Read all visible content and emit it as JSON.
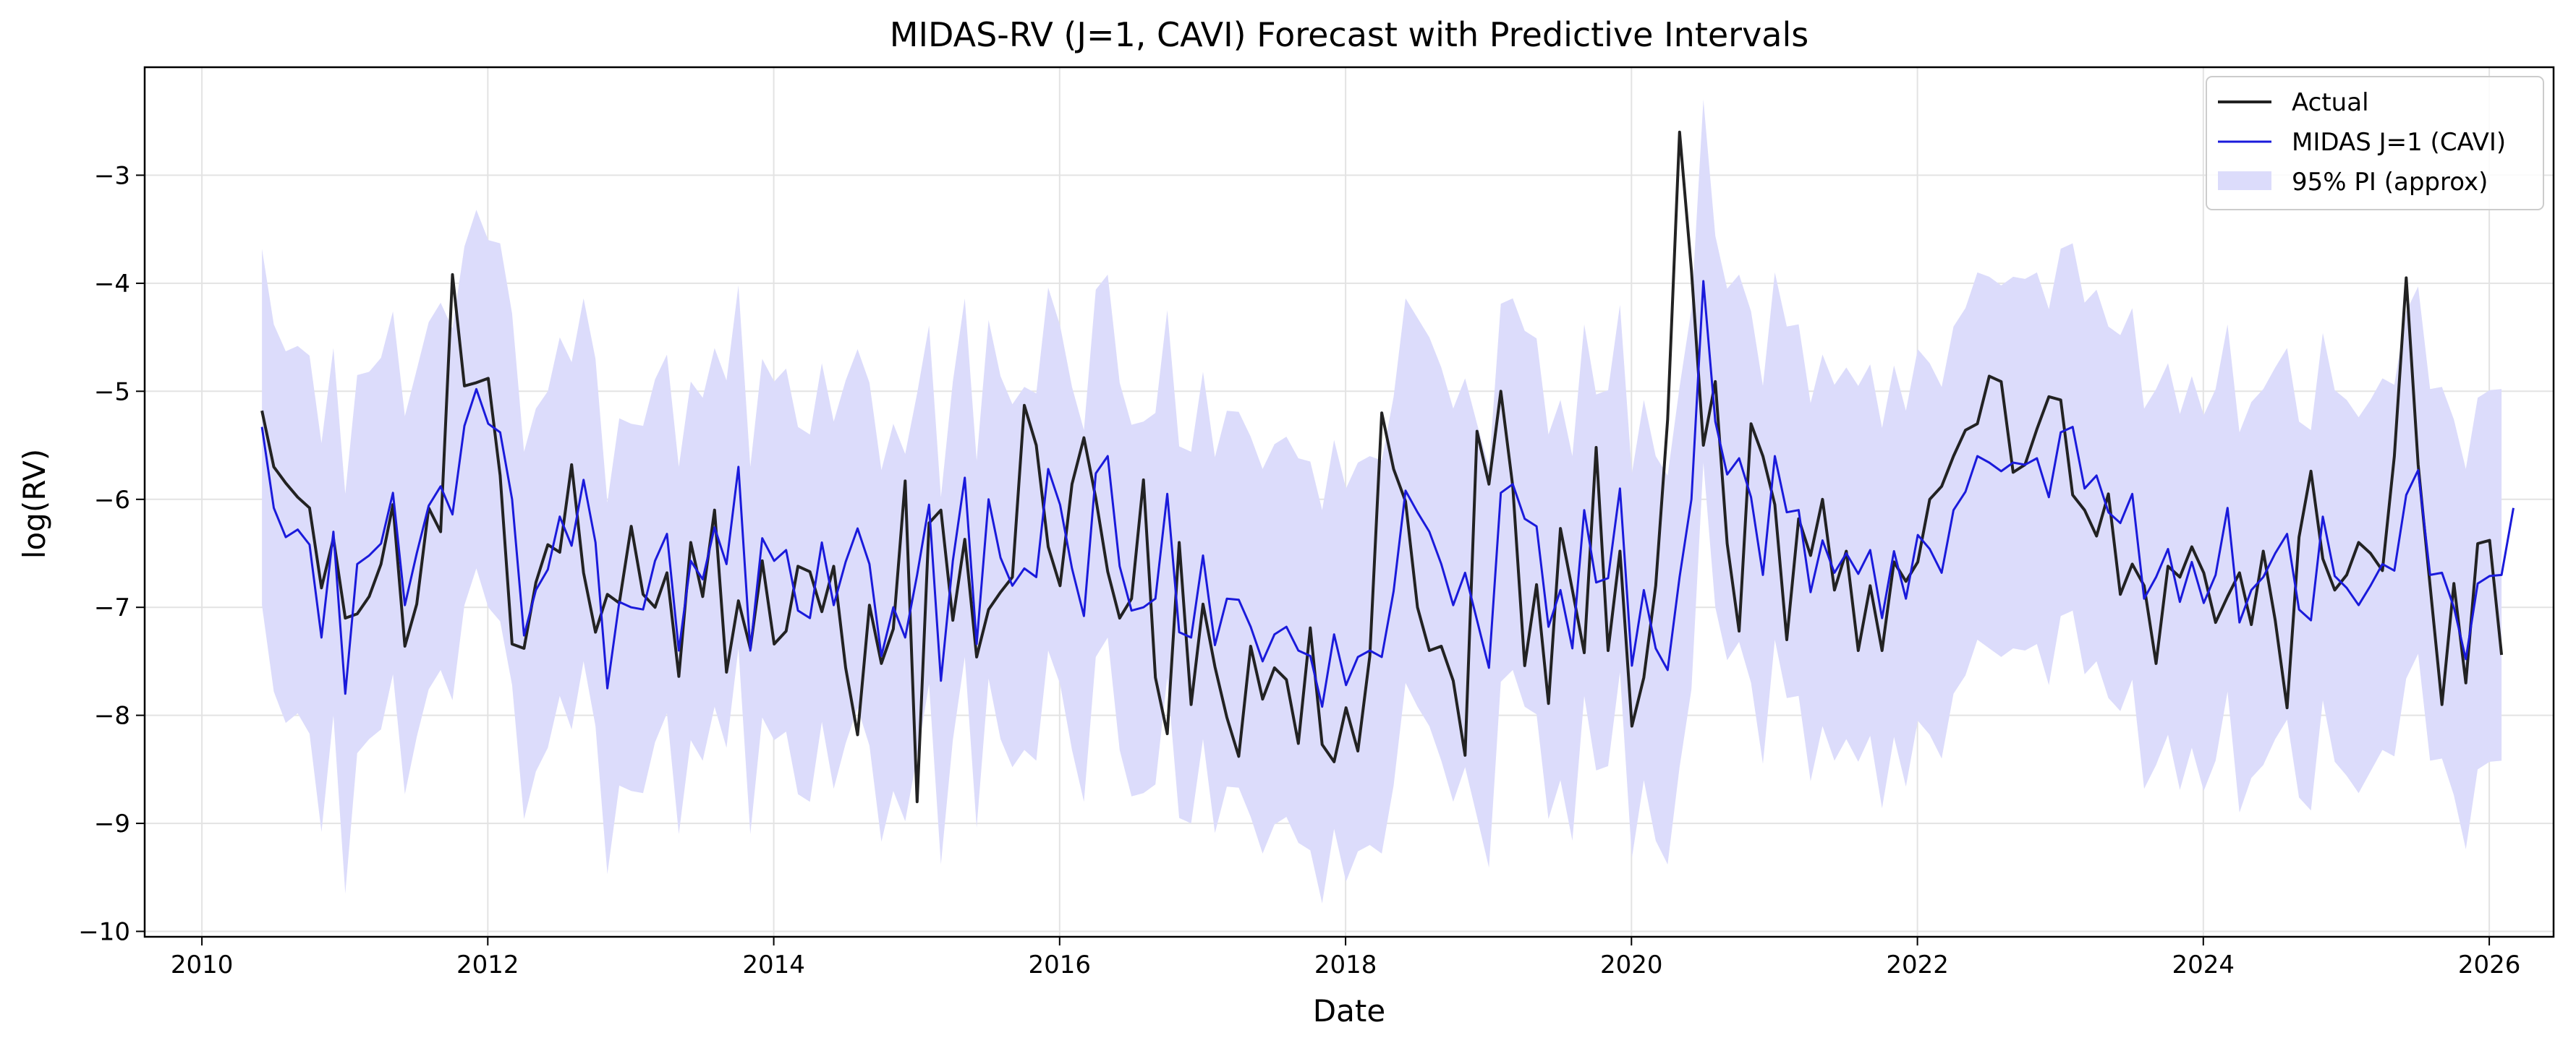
{
  "chart_data": {
    "type": "line",
    "title": "MIDAS-RV (J=1, CAVI) Forecast with Predictive Intervals",
    "xlabel": "Date",
    "ylabel": "log(RV)",
    "xlim": [
      2009.6,
      2026.45
    ],
    "ylim": [
      -10.05,
      -2.0
    ],
    "xticks": [
      2010,
      2012,
      2014,
      2016,
      2018,
      2020,
      2022,
      2024,
      2026
    ],
    "xtick_labels": [
      "2010",
      "2012",
      "2014",
      "2016",
      "2018",
      "2020",
      "2022",
      "2024",
      "2026"
    ],
    "yticks": [
      -10,
      -9,
      -8,
      -7,
      -6,
      -5,
      -4,
      -3
    ],
    "ytick_labels": [
      "−10",
      "−9",
      "−8",
      "−7",
      "−6",
      "−5",
      "−4",
      "−3"
    ],
    "grid": true,
    "legend_position": "top-right",
    "legend": {
      "actual": "Actual",
      "forecast": "MIDAS J=1 (CAVI)",
      "band": "95% PI (approx)"
    },
    "colors": {
      "actual": "#222222",
      "forecast": "#1a1adb",
      "band": "#dcdcfb",
      "grid": "#e3e3e3"
    },
    "x_start": 2010.42,
    "x_step": 0.08333,
    "actual": [
      -5.18,
      -5.7,
      -5.85,
      -5.98,
      -6.08,
      -6.82,
      -6.36,
      -7.1,
      -7.06,
      -6.9,
      -6.6,
      -6.05,
      -7.36,
      -6.97,
      -6.08,
      -6.3,
      -3.92,
      -4.95,
      -4.92,
      -4.88,
      -5.78,
      -7.34,
      -7.38,
      -6.77,
      -6.42,
      -6.49,
      -5.68,
      -6.68,
      -7.23,
      -6.88,
      -6.96,
      -6.25,
      -6.88,
      -7.0,
      -6.68,
      -7.64,
      -6.4,
      -6.9,
      -6.1,
      -7.6,
      -6.94,
      -7.38,
      -6.57,
      -7.34,
      -7.22,
      -6.62,
      -6.67,
      -7.04,
      -6.62,
      -7.56,
      -8.18,
      -6.98,
      -7.52,
      -7.2,
      -5.83,
      -8.8,
      -6.22,
      -6.1,
      -7.12,
      -6.37,
      -7.46,
      -7.02,
      -6.86,
      -6.72,
      -5.13,
      -5.5,
      -6.44,
      -6.8,
      -5.86,
      -5.43,
      -5.99,
      -6.67,
      -7.1,
      -6.92,
      -5.82,
      -7.65,
      -8.17,
      -6.4,
      -7.9,
      -6.97,
      -7.55,
      -8.02,
      -8.38,
      -7.36,
      -7.85,
      -7.56,
      -7.67,
      -8.26,
      -7.19,
      -8.27,
      -8.43,
      -7.93,
      -8.33,
      -7.45,
      -5.2,
      -5.72,
      -6.02,
      -7.0,
      -7.4,
      -7.36,
      -7.68,
      -8.37,
      -5.37,
      -5.86,
      -5.0,
      -5.88,
      -7.54,
      -6.79,
      -7.89,
      -6.27,
      -6.84,
      -7.42,
      -5.52,
      -7.4,
      -6.48,
      -8.1,
      -7.65,
      -6.8,
      -5.26,
      -2.6,
      -3.88,
      -5.5,
      -4.91,
      -6.41,
      -7.22,
      -5.3,
      -5.6,
      -6.05,
      -7.3,
      -6.18,
      -6.52,
      -6.0,
      -6.84,
      -6.48,
      -7.4,
      -6.8,
      -7.4,
      -6.58,
      -6.76,
      -6.58,
      -6.0,
      -5.88,
      -5.6,
      -5.36,
      -5.3,
      -4.86,
      -4.91,
      -5.75,
      -5.68,
      -5.35,
      -5.05,
      -5.08,
      -5.96,
      -6.1,
      -6.34,
      -5.95,
      -6.88,
      -6.6,
      -6.8,
      -7.52,
      -6.62,
      -6.72,
      -6.44,
      -6.68,
      -7.14,
      -6.9,
      -6.68,
      -7.16,
      -6.48,
      -7.12,
      -7.93,
      -6.35,
      -5.74,
      -6.55,
      -6.84,
      -6.7,
      -6.4,
      -6.5,
      -6.66,
      -5.6,
      -3.95,
      -5.68,
      -6.8,
      -7.9,
      -6.78,
      -7.7,
      -6.41,
      -6.38,
      -7.44
    ],
    "forecast": [
      -5.33,
      -6.08,
      -6.35,
      -6.28,
      -6.42,
      -7.28,
      -6.3,
      -7.8,
      -6.6,
      -6.52,
      -6.41,
      -5.94,
      -6.98,
      -6.5,
      -6.06,
      -5.88,
      -6.14,
      -5.32,
      -4.98,
      -5.3,
      -5.38,
      -6.0,
      -7.26,
      -6.84,
      -6.65,
      -6.16,
      -6.43,
      -5.82,
      -6.4,
      -7.75,
      -6.95,
      -7.0,
      -7.02,
      -6.57,
      -6.32,
      -7.4,
      -6.57,
      -6.74,
      -6.26,
      -6.6,
      -5.7,
      -7.4,
      -6.36,
      -6.57,
      -6.47,
      -7.03,
      -7.1,
      -6.4,
      -6.98,
      -6.58,
      -6.27,
      -6.6,
      -7.45,
      -7.0,
      -7.28,
      -6.7,
      -6.05,
      -7.68,
      -6.57,
      -5.8,
      -7.34,
      -6.0,
      -6.54,
      -6.8,
      -6.64,
      -6.72,
      -5.72,
      -6.05,
      -6.64,
      -7.08,
      -5.76,
      -5.6,
      -6.62,
      -7.03,
      -7.0,
      -6.92,
      -5.95,
      -7.23,
      -7.28,
      -6.52,
      -7.35,
      -6.92,
      -6.93,
      -7.18,
      -7.5,
      -7.25,
      -7.18,
      -7.4,
      -7.45,
      -7.92,
      -7.25,
      -7.72,
      -7.46,
      -7.4,
      -7.46,
      -6.85,
      -5.92,
      -6.12,
      -6.3,
      -6.6,
      -6.98,
      -6.68,
      -7.12,
      -7.56,
      -5.94,
      -5.86,
      -6.18,
      -6.25,
      -7.18,
      -6.84,
      -7.38,
      -6.1,
      -6.77,
      -6.73,
      -5.9,
      -7.54,
      -6.84,
      -7.38,
      -7.58,
      -6.72,
      -6.0,
      -3.98,
      -5.28,
      -5.77,
      -5.62,
      -5.98,
      -6.7,
      -5.6,
      -6.12,
      -6.1,
      -6.86,
      -6.38,
      -6.68,
      -6.5,
      -6.69,
      -6.47,
      -7.1,
      -6.48,
      -6.92,
      -6.33,
      -6.46,
      -6.68,
      -6.1,
      -5.93,
      -5.6,
      -5.66,
      -5.74,
      -5.66,
      -5.68,
      -5.62,
      -5.98,
      -5.38,
      -5.33,
      -5.9,
      -5.78,
      -6.12,
      -6.22,
      -5.95,
      -6.92,
      -6.72,
      -6.46,
      -6.95,
      -6.58,
      -6.96,
      -6.7,
      -6.08,
      -7.14,
      -6.84,
      -6.72,
      -6.5,
      -6.32,
      -7.02,
      -7.12,
      -6.16,
      -6.71,
      -6.82,
      -6.98,
      -6.8,
      -6.6,
      -6.66,
      -5.96,
      -5.73,
      -6.7,
      -6.68,
      -7.0,
      -7.48,
      -6.78,
      -6.71,
      -6.7,
      -6.08
    ],
    "pi_half_widths": [
      1.65,
      1.7,
      1.72,
      1.7,
      1.75,
      1.8,
      1.7,
      1.85,
      1.75,
      1.7,
      1.72,
      1.68,
      1.75,
      1.7,
      1.7,
      1.7,
      1.72,
      1.66,
      1.66,
      1.7,
      1.75,
      1.72,
      1.7,
      1.68,
      1.65,
      1.66,
      1.7,
      1.68,
      1.7,
      1.72,
      1.7,
      1.7,
      1.7,
      1.68,
      1.66,
      1.7,
      1.66,
      1.68,
      1.66,
      1.7,
      1.68,
      1.7,
      1.66,
      1.66,
      1.68,
      1.7,
      1.7,
      1.66,
      1.7,
      1.68,
      1.66,
      1.68,
      1.72,
      1.7,
      1.7,
      1.68,
      1.66,
      1.7,
      1.66,
      1.66,
      1.7,
      1.66,
      1.68,
      1.68,
      1.68,
      1.7,
      1.68,
      1.66,
      1.68,
      1.72,
      1.7,
      1.68,
      1.7,
      1.72,
      1.72,
      1.72,
      1.7,
      1.72,
      1.72,
      1.7,
      1.74,
      1.74,
      1.74,
      1.76,
      1.78,
      1.76,
      1.76,
      1.78,
      1.8,
      1.82,
      1.8,
      1.82,
      1.8,
      1.8,
      1.82,
      1.8,
      1.78,
      1.8,
      1.8,
      1.82,
      1.82,
      1.8,
      1.82,
      1.85,
      1.75,
      1.72,
      1.74,
      1.74,
      1.78,
      1.76,
      1.78,
      1.72,
      1.74,
      1.74,
      1.7,
      1.78,
      1.76,
      1.78,
      1.8,
      1.76,
      1.76,
      1.68,
      1.72,
      1.72,
      1.7,
      1.72,
      1.75,
      1.7,
      1.72,
      1.72,
      1.75,
      1.72,
      1.74,
      1.72,
      1.74,
      1.72,
      1.76,
      1.72,
      1.74,
      1.72,
      1.72,
      1.72,
      1.7,
      1.7,
      1.7,
      1.72,
      1.72,
      1.72,
      1.72,
      1.72,
      1.74,
      1.7,
      1.7,
      1.72,
      1.72,
      1.72,
      1.74,
      1.72,
      1.76,
      1.74,
      1.72,
      1.74,
      1.72,
      1.74,
      1.72,
      1.7,
      1.76,
      1.74,
      1.74,
      1.72,
      1.72,
      1.74,
      1.76,
      1.7,
      1.72,
      1.74,
      1.74,
      1.72,
      1.72,
      1.72,
      1.7,
      1.7,
      1.72,
      1.72,
      1.74,
      1.76,
      1.72,
      1.72,
      1.72,
      1.7
    ]
  }
}
